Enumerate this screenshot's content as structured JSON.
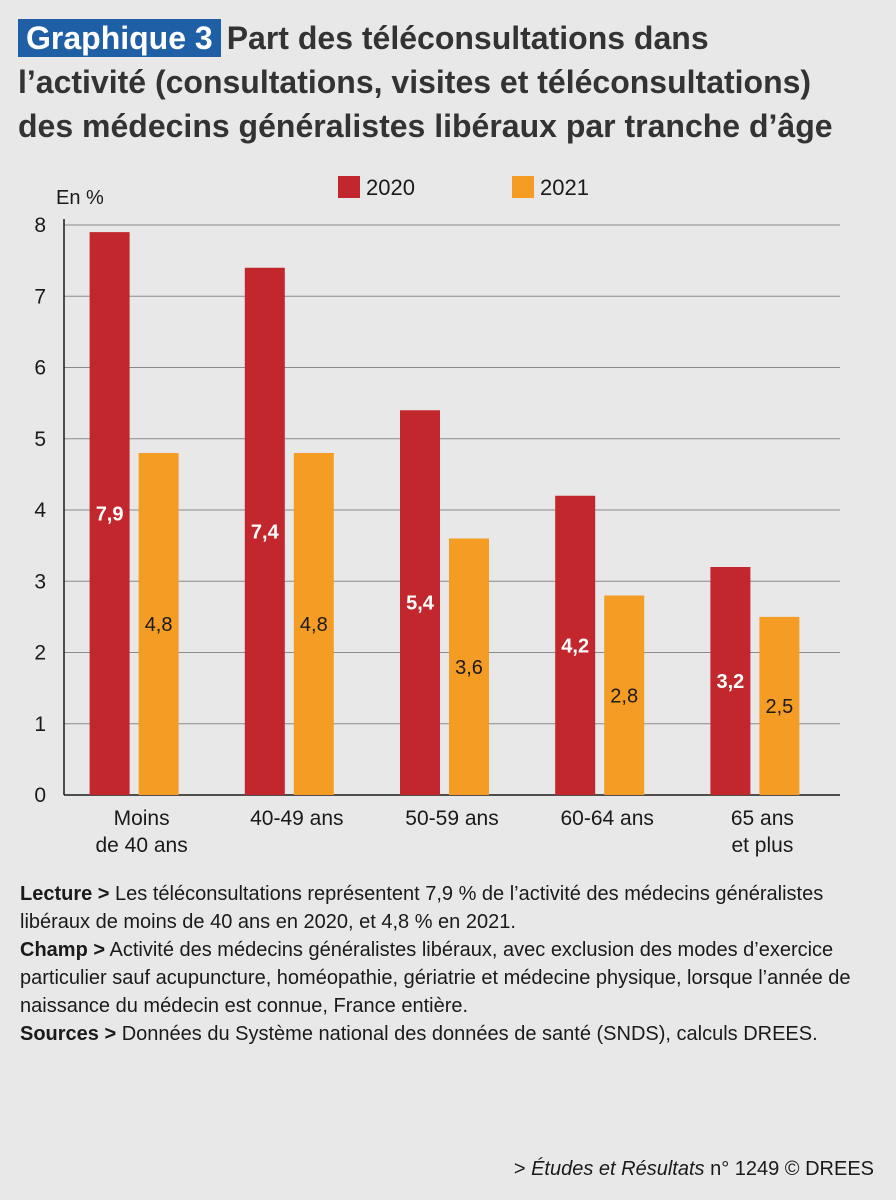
{
  "header": {
    "badge": "Graphique 3",
    "title_line1": "Part des téléconsultations dans",
    "title_line2": "l’activité (consultations, visites et téléconsultations)",
    "title_line3": "des médecins généralistes libéraux par tranche d’âge"
  },
  "chart_data": {
    "type": "bar",
    "title": "Part des téléconsultations dans l’activité (consultations, visites et téléconsultations) des médecins généralistes libéraux par tranche d’âge",
    "ylabel": "En %",
    "xlabel": "",
    "categories": [
      [
        "Moins",
        "de 40 ans"
      ],
      [
        "40-49 ans"
      ],
      [
        "50-59 ans"
      ],
      [
        "60-64 ans"
      ],
      [
        "65 ans",
        "et plus"
      ]
    ],
    "series": [
      {
        "name": "2020",
        "color": "#c1272d",
        "label_color": "#ffffff",
        "values": [
          7.9,
          7.4,
          5.4,
          4.2,
          3.2
        ],
        "labels": [
          "7,9",
          "7,4",
          "5,4",
          "4,2",
          "3,2"
        ]
      },
      {
        "name": "2021",
        "color": "#f59c24",
        "label_color": "#1a1a1a",
        "values": [
          4.8,
          4.8,
          3.6,
          2.8,
          2.5
        ],
        "labels": [
          "4,8",
          "4,8",
          "3,6",
          "2,8",
          "2,5"
        ]
      }
    ],
    "ylim": [
      0,
      8
    ],
    "yticks": [
      0,
      1,
      2,
      3,
      4,
      5,
      6,
      7,
      8
    ],
    "grid": true,
    "legend_position": "top-center"
  },
  "notes": {
    "lecture_label": "Lecture >",
    "lecture_text": " Les téléconsultations représentent 7,9 % de l’activité des médecins généralistes libéraux de moins de 40 ans en 2020, et 4,8 % en 2021.",
    "champ_label": "Champ >",
    "champ_text": " Activité des médecins généralistes libéraux, avec exclusion des modes d’exercice particulier sauf acupuncture, homéopathie, gériatrie et médecine physique, lorsque l’année de naissance du médecin est connue, France entière.",
    "sources_label": "Sources >",
    "sources_text": " Données du Système national des données de santé (SNDS), calculs DREES."
  },
  "footer": {
    "prefix": "> ",
    "publication": "Études et Résultats",
    "suffix": " n° 1249 © DREES"
  }
}
